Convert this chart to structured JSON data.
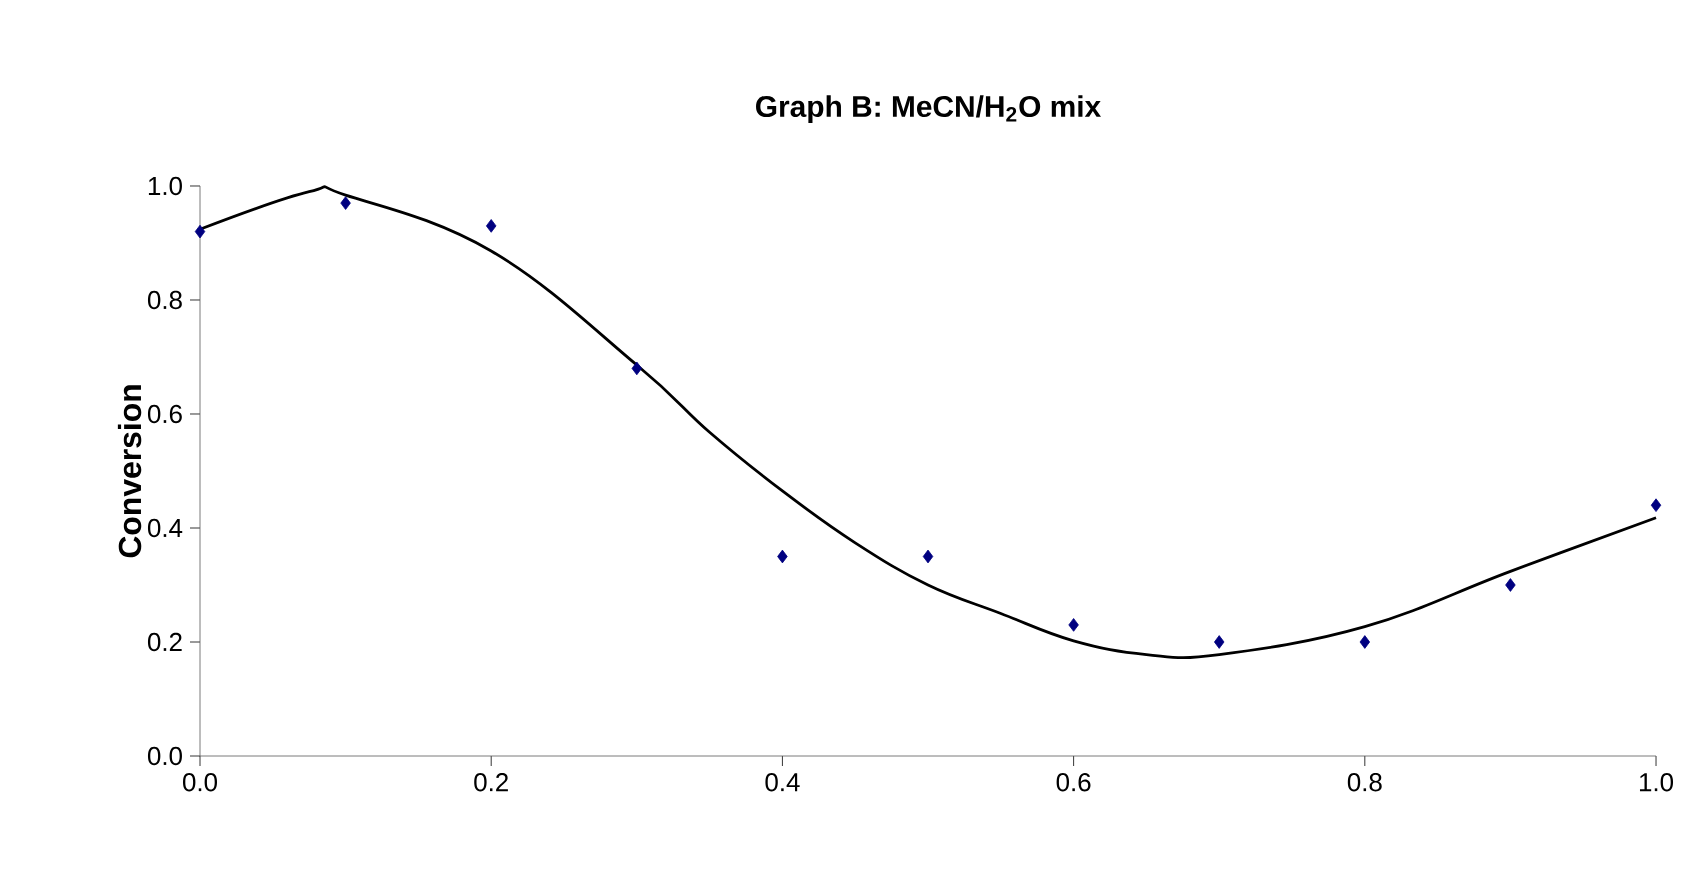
{
  "chart_data": {
    "type": "scatter",
    "title": "Graph B: MeCN/H$_{2}$O mix",
    "ylabel": "Conversion",
    "x": [
      0.0,
      0.1,
      0.2,
      0.3,
      0.4,
      0.5,
      0.6,
      0.7,
      0.8,
      0.9,
      1.0
    ],
    "series": [
      {
        "color": "#000080",
        "marker": "diamond",
        "values": [
          0.92,
          0.97,
          0.93,
          0.68,
          0.35,
          0.35,
          0.23,
          0.2,
          0.2,
          0.3,
          0.44
        ]
      },
      {
        "type": "line",
        "color": "#000000",
        "marker": "none",
        "line_style": "solid",
        "x": [
          0.0,
          0.075,
          0.1,
          0.2,
          0.3,
          0.35,
          0.4,
          0.45,
          0.5,
          0.55,
          0.6,
          0.65,
          0.7,
          0.8,
          0.9,
          1.0
        ],
        "values": [
          0.924,
          0.99,
          0.984,
          0.886,
          0.686,
          0.568,
          0.465,
          0.374,
          0.3,
          0.25,
          0.202,
          0.178,
          0.178,
          0.227,
          0.324,
          0.418
        ]
      }
    ],
    "xlim": [
      0.0,
      1.0
    ],
    "ylim": [
      0.0,
      1.0
    ],
    "xticks": [
      {
        "value": 0.0,
        "label": "0.0"
      },
      {
        "value": 0.2,
        "label": "0.2"
      },
      {
        "value": 0.4,
        "label": "0.4"
      },
      {
        "value": 0.6,
        "label": "0.6"
      },
      {
        "value": 0.8,
        "label": "0.8"
      },
      {
        "value": 1.0,
        "label": "1.0"
      }
    ],
    "yticks": [
      {
        "value": 0.0,
        "label": "0.0"
      },
      {
        "value": 0.2,
        "label": "0.2"
      },
      {
        "value": 0.4,
        "label": "0.4"
      },
      {
        "value": 0.6,
        "label": "0.6"
      },
      {
        "value": 0.8,
        "label": "0.8"
      },
      {
        "value": 1.0,
        "label": "1.0"
      }
    ],
    "grid": false
  }
}
